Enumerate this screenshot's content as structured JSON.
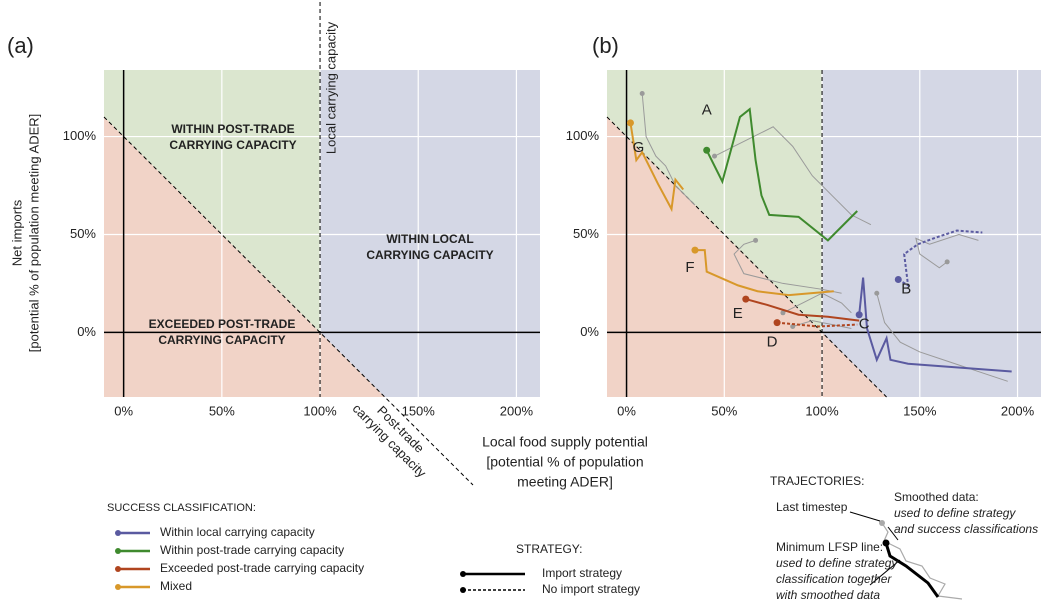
{
  "chart_data": [
    {
      "type": "region",
      "panel_label": "(a)",
      "y_label": [
        "Net imports",
        "[potential % of population meeting ADER]"
      ],
      "xlim": [
        -10,
        212
      ],
      "ylim": [
        -33,
        134
      ],
      "xticks": [
        {
          "value": 0,
          "label": "0%"
        },
        {
          "value": 50,
          "label": "50%"
        },
        {
          "value": 100,
          "label": "100%"
        },
        {
          "value": 150,
          "label": "150%"
        },
        {
          "value": 200,
          "label": "200%"
        }
      ],
      "yticks": [
        {
          "value": 0,
          "label": "0%"
        },
        {
          "value": 50,
          "label": "50%"
        },
        {
          "value": 100,
          "label": "100%"
        }
      ],
      "region_colors": {
        "post_trade": "#dbe6cf",
        "local": "#d4d7e5",
        "exceeded": "#f1d3c7"
      },
      "region_labels": [
        {
          "lines": [
            "WITHIN POST-TRADE",
            "CARRYING CAPACITY"
          ],
          "color": "#5d9a3c"
        },
        {
          "lines": [
            "WITHIN LOCAL",
            "CARRYING CAPACITY"
          ],
          "color": "#5c5c9c"
        },
        {
          "lines": [
            "EXCEEDED POST-TRADE",
            "CARRYING CAPACITY"
          ],
          "color": "#c2552c"
        }
      ],
      "local_line_label": "Local carrying capacity",
      "post_trade_line_label": [
        "Post-trade",
        "carrying capacity"
      ]
    },
    {
      "type": "trajectory",
      "panel_label": "(b)",
      "xlim": [
        -10,
        212
      ],
      "ylim": [
        -33,
        134
      ],
      "xticks": [
        {
          "value": 0,
          "label": "0%"
        },
        {
          "value": 50,
          "label": "50%"
        },
        {
          "value": 100,
          "label": "100%"
        },
        {
          "value": 150,
          "label": "150%"
        },
        {
          "value": 200,
          "label": "200%"
        }
      ],
      "yticks": [
        {
          "value": 0,
          "label": "0%"
        },
        {
          "value": 50,
          "label": "50%"
        },
        {
          "value": 100,
          "label": "100%"
        }
      ],
      "region_colors": {
        "post_trade": "#dbe6cf",
        "local": "#d4d7e5",
        "exceeded": "#f1d3c7"
      },
      "smoothed_color": "#9a9a9a",
      "series": [
        {
          "name": "A",
          "color": "#3f8a2e",
          "dashed": false,
          "x": [
            41,
            49,
            58,
            63,
            66,
            69,
            73,
            88,
            103,
            118
          ],
          "y": [
            93,
            77,
            110,
            114,
            88,
            70,
            60,
            59,
            47,
            62
          ],
          "smoothed_x": [
            45,
            55,
            65,
            75,
            85,
            95,
            105,
            115,
            125
          ],
          "smoothed_y": [
            90,
            95,
            100,
            105,
            95,
            80,
            70,
            60,
            55
          ]
        },
        {
          "name": "B",
          "color": "#5a5aa0",
          "dashed": true,
          "x": [
            139,
            144,
            142,
            149,
            157,
            169,
            182
          ],
          "y": [
            27,
            24,
            40,
            45,
            48,
            52,
            51
          ],
          "smoothed_x": [
            164,
            160,
            150,
            148,
            155,
            170,
            180
          ],
          "smoothed_y": [
            36,
            33,
            40,
            48,
            45,
            50,
            47
          ]
        },
        {
          "name": "C",
          "color": "#5a5aa0",
          "dashed": false,
          "x": [
            119,
            121,
            123,
            128,
            133,
            135,
            144,
            197
          ],
          "y": [
            9,
            28,
            2,
            -14,
            -3,
            -14,
            -16,
            -20
          ],
          "smoothed_x": [
            128,
            132,
            140,
            150,
            165,
            180,
            195
          ],
          "smoothed_y": [
            20,
            5,
            -5,
            -10,
            -15,
            -20,
            -25
          ]
        },
        {
          "name": "D",
          "color": "#b0451f",
          "dashed": true,
          "x": [
            77,
            98,
            118
          ],
          "y": [
            5,
            3,
            4
          ],
          "smoothed_x": [
            85,
            95,
            105,
            115
          ],
          "smoothed_y": [
            3,
            6,
            4,
            2
          ]
        },
        {
          "name": "E",
          "color": "#b0451f",
          "dashed": false,
          "x": [
            61,
            72,
            88,
            103,
            119
          ],
          "y": [
            17,
            14,
            9,
            8,
            6
          ],
          "smoothed_x": [
            80,
            90,
            100,
            110,
            115
          ],
          "smoothed_y": [
            10,
            15,
            20,
            15,
            10
          ]
        },
        {
          "name": "F",
          "color": "#d8982a",
          "dashed": false,
          "x": [
            35,
            40,
            41,
            57,
            67,
            83,
            106
          ],
          "y": [
            42,
            42,
            31,
            24,
            21,
            19,
            21
          ],
          "smoothed_x": [
            66,
            60,
            55,
            60,
            80,
            100,
            110
          ],
          "smoothed_y": [
            47,
            45,
            40,
            30,
            25,
            22,
            20
          ]
        },
        {
          "name": "G",
          "color": "#d8982a",
          "dashed": false,
          "x": [
            2,
            5,
            8,
            11,
            16,
            23,
            25,
            29
          ],
          "y": [
            107,
            88,
            92,
            86,
            76,
            63,
            78,
            73
          ],
          "smoothed_x": [
            8,
            10,
            15,
            20,
            25,
            30,
            35
          ],
          "smoothed_y": [
            122,
            100,
            90,
            85,
            75,
            70,
            65
          ]
        }
      ]
    }
  ],
  "shared_x_label": [
    "Local food supply potential",
    "[potential % of population",
    "meeting ADER]"
  ],
  "success_legend": {
    "title": "SUCCESS CLASSIFICATION:",
    "items": [
      {
        "name": "Within local carrying capacity",
        "color": "#5a5aa0"
      },
      {
        "name": "Within post-trade carrying capacity",
        "color": "#3f8a2e"
      },
      {
        "name": "Exceeded post-trade carrying capacity",
        "color": "#b0451f"
      },
      {
        "name": "Mixed",
        "color": "#d8982a"
      }
    ]
  },
  "strategy_legend": {
    "title": "STRATEGY:",
    "items": [
      {
        "name": "Import strategy",
        "dashed": false
      },
      {
        "name": "No import strategy",
        "dashed": true
      }
    ]
  },
  "trajectories_inset": {
    "title": "TRAJECTORIES:",
    "last_timestep": "Last timestep",
    "smoothed": [
      "Smoothed data:",
      "used to define strategy",
      "and success classifications"
    ],
    "minimum": [
      "Minimum LFSP line:",
      "used to define strategy",
      "classification together",
      "with smoothed data"
    ]
  }
}
